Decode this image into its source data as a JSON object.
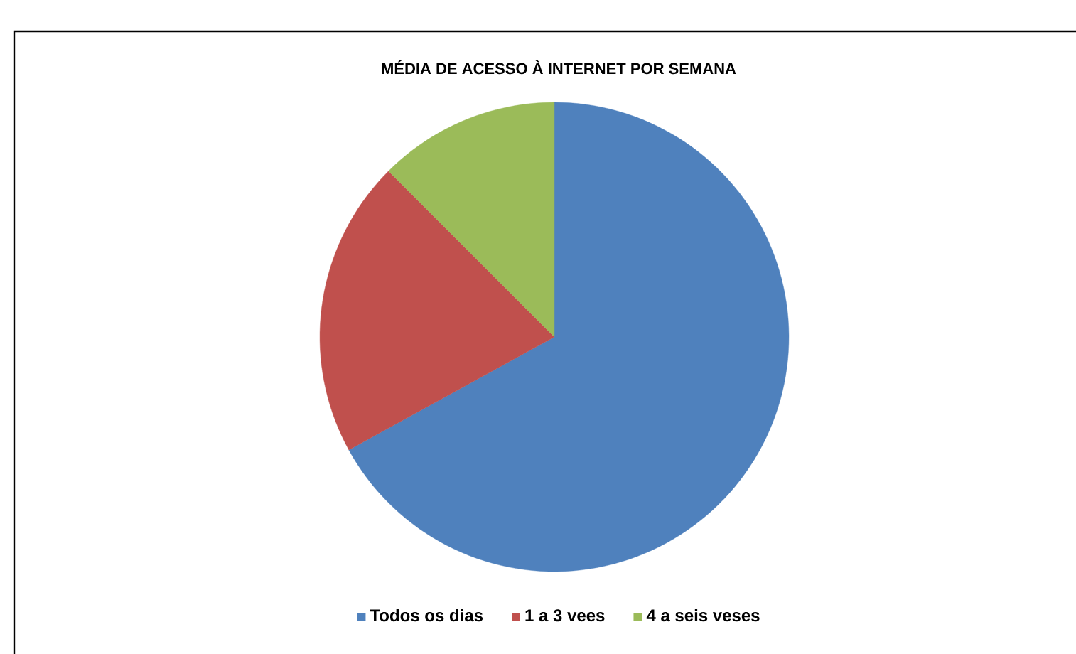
{
  "chart_data": {
    "type": "pie",
    "title": "MÉDIA DE ACESSO À INTERNET POR SEMANA",
    "categories": [
      "Todos os dias",
      "1 a 3 vees",
      "4 a seis veses"
    ],
    "values": [
      67,
      20.5,
      12.5
    ],
    "colors": [
      "#4f81bd",
      "#c0504d",
      "#9bbb59"
    ],
    "legend": "bottom"
  }
}
